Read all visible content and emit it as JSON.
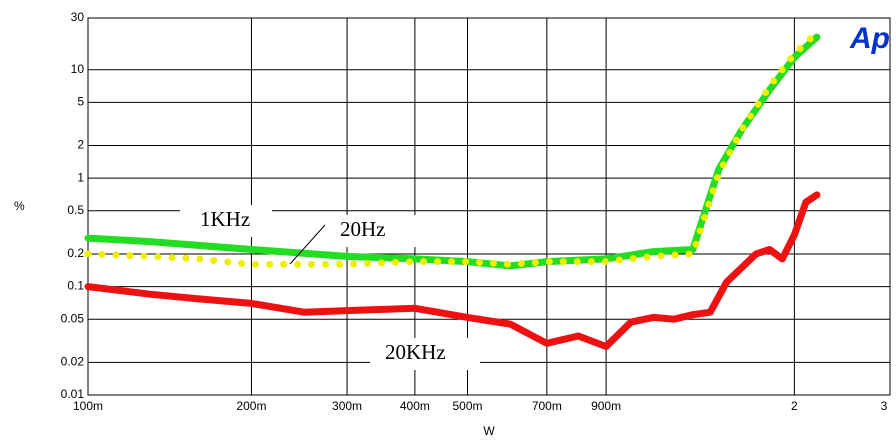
{
  "chart_data": {
    "type": "line",
    "logo": "Ap",
    "xlabel": "W",
    "ylabel": "%",
    "xlog": true,
    "ylog": true,
    "grid": true,
    "xlim": [
      0.1,
      3
    ],
    "ylim": [
      0.01,
      30
    ],
    "xticks": [
      {
        "value": 0.1,
        "label": "100m"
      },
      {
        "value": 0.2,
        "label": "200m"
      },
      {
        "value": 0.3,
        "label": "300m"
      },
      {
        "value": 0.4,
        "label": "400m"
      },
      {
        "value": 0.5,
        "label": "500m"
      },
      {
        "value": 0.7,
        "label": "700m"
      },
      {
        "value": 0.9,
        "label": "900m"
      },
      2,
      3
    ],
    "yticks": [
      30,
      10,
      5,
      2,
      1,
      0.5,
      0.2,
      0.1,
      0.05,
      0.02,
      0.01
    ],
    "series": [
      {
        "name": "1KHz",
        "color": "#22dd22",
        "style": "solid",
        "x": [
          0.1,
          0.13,
          0.16,
          0.2,
          0.3,
          0.4,
          0.5,
          0.6,
          0.7,
          0.9,
          1.1,
          1.3,
          1.45,
          1.6,
          1.8,
          2.0,
          2.2
        ],
        "values": [
          0.28,
          0.26,
          0.24,
          0.22,
          0.19,
          0.18,
          0.17,
          0.155,
          0.17,
          0.18,
          0.21,
          0.22,
          1.2,
          2.8,
          6.5,
          13,
          20
        ]
      },
      {
        "name": "20Hz",
        "color": "#eeee00",
        "style": "dotted",
        "x": [
          0.1,
          0.13,
          0.16,
          0.2,
          0.3,
          0.4,
          0.5,
          0.6,
          0.7,
          0.9,
          1.1,
          1.3,
          1.45,
          1.6,
          1.8,
          2.0,
          2.2
        ],
        "values": [
          0.2,
          0.19,
          0.18,
          0.16,
          0.16,
          0.17,
          0.17,
          0.16,
          0.17,
          0.17,
          0.19,
          0.2,
          1.1,
          2.8,
          7,
          14,
          22
        ]
      },
      {
        "name": "20KHz",
        "color": "#ee1111",
        "style": "solid",
        "x": [
          0.1,
          0.13,
          0.16,
          0.2,
          0.25,
          0.3,
          0.4,
          0.5,
          0.6,
          0.7,
          0.8,
          0.9,
          1.0,
          1.1,
          1.2,
          1.3,
          1.4,
          1.5,
          1.7,
          1.8,
          1.9,
          2.0,
          2.1,
          2.2
        ],
        "values": [
          0.1,
          0.085,
          0.077,
          0.07,
          0.058,
          0.06,
          0.063,
          0.052,
          0.045,
          0.03,
          0.035,
          0.028,
          0.047,
          0.052,
          0.05,
          0.055,
          0.058,
          0.11,
          0.2,
          0.22,
          0.18,
          0.3,
          0.6,
          0.7
        ]
      }
    ]
  }
}
